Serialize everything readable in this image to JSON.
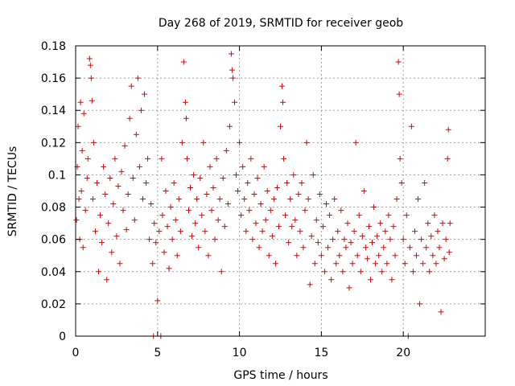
{
  "chart_data": {
    "type": "scatter",
    "title": "Day 268 of 2019, SRMTID for receiver geob",
    "xlabel": "GPS time / hours",
    "ylabel": "SRMTID / TECUs",
    "xlim": [
      0,
      25
    ],
    "ylim": [
      0,
      0.18
    ],
    "xticks": [
      0,
      5,
      10,
      15,
      20
    ],
    "xtick_labels": [
      "0",
      "5",
      "10",
      "15",
      "20"
    ],
    "yticks": [
      0,
      0.02,
      0.04,
      0.06,
      0.08,
      0.1,
      0.12,
      0.14,
      0.16,
      0.18
    ],
    "ytick_labels": [
      "0",
      "0.02",
      "0.04",
      "0.06",
      "0.08",
      "0.1",
      "0.12",
      "0.14",
      "0.16",
      "0.18"
    ],
    "grid": true,
    "marker": "+",
    "color": "#e00000",
    "series": [
      {
        "name": "SRMTID",
        "points": [
          [
            0.05,
            0.072
          ],
          [
            0.1,
            0.105
          ],
          [
            0.15,
            0.13
          ],
          [
            0.2,
            0.085
          ],
          [
            0.25,
            0.06
          ],
          [
            0.3,
            0.145
          ],
          [
            0.35,
            0.09
          ],
          [
            0.4,
            0.115
          ],
          [
            0.45,
            0.055
          ],
          [
            0.5,
            0.138
          ],
          [
            0.6,
            0.078
          ],
          [
            0.7,
            0.098
          ],
          [
            0.75,
            0.11
          ],
          [
            0.85,
            0.172
          ],
          [
            0.9,
            0.168
          ],
          [
            0.95,
            0.16
          ],
          [
            1.0,
            0.146
          ],
          [
            1.05,
            0.085
          ],
          [
            1.1,
            0.12
          ],
          [
            1.2,
            0.065
          ],
          [
            1.3,
            0.095
          ],
          [
            1.4,
            0.04
          ],
          [
            1.5,
            0.075
          ],
          [
            1.6,
            0.058
          ],
          [
            1.7,
            0.105
          ],
          [
            1.8,
            0.088
          ],
          [
            1.9,
            0.035
          ],
          [
            2.0,
            0.07
          ],
          [
            2.1,
            0.098
          ],
          [
            2.2,
            0.052
          ],
          [
            2.3,
            0.082
          ],
          [
            2.4,
            0.11
          ],
          [
            2.5,
            0.062
          ],
          [
            2.6,
            0.093
          ],
          [
            2.7,
            0.045
          ],
          [
            2.8,
            0.102
          ],
          [
            2.9,
            0.078
          ],
          [
            3.0,
            0.118
          ],
          [
            3.1,
            0.066
          ],
          [
            3.2,
            0.088
          ],
          [
            3.3,
            0.135
          ],
          [
            3.4,
            0.155
          ],
          [
            3.5,
            0.098
          ],
          [
            3.6,
            0.072
          ],
          [
            3.7,
            0.125
          ],
          [
            3.8,
            0.16
          ],
          [
            3.9,
            0.105
          ],
          [
            4.0,
            0.14
          ],
          [
            4.1,
            0.085
          ],
          [
            4.2,
            0.15
          ],
          [
            4.3,
            0.095
          ],
          [
            4.4,
            0.11
          ],
          [
            4.5,
            0.06
          ],
          [
            4.6,
            0.082
          ],
          [
            4.7,
            0.045
          ],
          [
            4.75,
            0.0
          ],
          [
            4.8,
            0.07
          ],
          [
            4.9,
            0.058
          ],
          [
            5.0,
            0.022
          ],
          [
            5.1,
            0.065
          ],
          [
            5.2,
            0.0
          ],
          [
            5.25,
            0.11
          ],
          [
            5.3,
            0.075
          ],
          [
            5.4,
            0.052
          ],
          [
            5.5,
            0.09
          ],
          [
            5.6,
            0.068
          ],
          [
            5.7,
            0.042
          ],
          [
            5.8,
            0.08
          ],
          [
            5.9,
            0.06
          ],
          [
            6.0,
            0.095
          ],
          [
            6.1,
            0.072
          ],
          [
            6.2,
            0.05
          ],
          [
            6.3,
            0.085
          ],
          [
            6.4,
            0.065
          ],
          [
            6.5,
            0.12
          ],
          [
            6.6,
            0.17
          ],
          [
            6.7,
            0.145
          ],
          [
            6.75,
            0.135
          ],
          [
            6.8,
            0.11
          ],
          [
            6.9,
            0.078
          ],
          [
            7.0,
            0.092
          ],
          [
            7.1,
            0.062
          ],
          [
            7.2,
            0.1
          ],
          [
            7.3,
            0.07
          ],
          [
            7.4,
            0.085
          ],
          [
            7.5,
            0.055
          ],
          [
            7.6,
            0.098
          ],
          [
            7.7,
            0.075
          ],
          [
            7.8,
            0.12
          ],
          [
            7.9,
            0.065
          ],
          [
            8.0,
            0.088
          ],
          [
            8.1,
            0.05
          ],
          [
            8.2,
            0.105
          ],
          [
            8.3,
            0.078
          ],
          [
            8.4,
            0.092
          ],
          [
            8.5,
            0.06
          ],
          [
            8.6,
            0.11
          ],
          [
            8.7,
            0.072
          ],
          [
            8.8,
            0.085
          ],
          [
            8.9,
            0.04
          ],
          [
            9.0,
            0.098
          ],
          [
            9.1,
            0.068
          ],
          [
            9.2,
            0.115
          ],
          [
            9.3,
            0.082
          ],
          [
            9.4,
            0.13
          ],
          [
            9.5,
            0.175
          ],
          [
            9.55,
            0.165
          ],
          [
            9.6,
            0.16
          ],
          [
            9.7,
            0.145
          ],
          [
            9.8,
            0.1
          ],
          [
            9.9,
            0.09
          ],
          [
            10.0,
            0.12
          ],
          [
            10.1,
            0.075
          ],
          [
            10.2,
            0.105
          ],
          [
            10.3,
            0.085
          ],
          [
            10.4,
            0.065
          ],
          [
            10.5,
            0.095
          ],
          [
            10.6,
            0.078
          ],
          [
            10.7,
            0.11
          ],
          [
            10.8,
            0.06
          ],
          [
            10.9,
            0.088
          ],
          [
            11.0,
            0.07
          ],
          [
            11.1,
            0.098
          ],
          [
            11.2,
            0.055
          ],
          [
            11.3,
            0.082
          ],
          [
            11.4,
            0.065
          ],
          [
            11.5,
            0.105
          ],
          [
            11.6,
            0.072
          ],
          [
            11.7,
            0.09
          ],
          [
            11.8,
            0.05
          ],
          [
            11.9,
            0.078
          ],
          [
            12.0,
            0.062
          ],
          [
            12.1,
            0.085
          ],
          [
            12.2,
            0.045
          ],
          [
            12.3,
            0.092
          ],
          [
            12.4,
            0.068
          ],
          [
            12.5,
            0.13
          ],
          [
            12.6,
            0.155
          ],
          [
            12.65,
            0.145
          ],
          [
            12.7,
            0.11
          ],
          [
            12.8,
            0.075
          ],
          [
            12.9,
            0.095
          ],
          [
            13.0,
            0.058
          ],
          [
            13.1,
            0.085
          ],
          [
            13.2,
            0.068
          ],
          [
            13.3,
            0.1
          ],
          [
            13.4,
            0.072
          ],
          [
            13.5,
            0.05
          ],
          [
            13.6,
            0.088
          ],
          [
            13.7,
            0.065
          ],
          [
            13.8,
            0.095
          ],
          [
            13.9,
            0.055
          ],
          [
            14.0,
            0.078
          ],
          [
            14.1,
            0.12
          ],
          [
            14.2,
            0.085
          ],
          [
            14.3,
            0.032
          ],
          [
            14.4,
            0.062
          ],
          [
            14.5,
            0.1
          ],
          [
            14.6,
            0.045
          ],
          [
            14.7,
            0.072
          ],
          [
            14.8,
            0.058
          ],
          [
            14.9,
            0.088
          ],
          [
            15.0,
            0.05
          ],
          [
            15.1,
            0.068
          ],
          [
            15.2,
            0.04
          ],
          [
            15.3,
            0.082
          ],
          [
            15.4,
            0.055
          ],
          [
            15.5,
            0.075
          ],
          [
            15.6,
            0.035
          ],
          [
            15.7,
            0.06
          ],
          [
            15.8,
            0.085
          ],
          [
            15.9,
            0.045
          ],
          [
            16.0,
            0.065
          ],
          [
            16.1,
            0.05
          ],
          [
            16.2,
            0.078
          ],
          [
            16.3,
            0.04
          ],
          [
            16.4,
            0.06
          ],
          [
            16.5,
            0.055
          ],
          [
            16.6,
            0.07
          ],
          [
            16.7,
            0.03
          ],
          [
            16.8,
            0.058
          ],
          [
            16.9,
            0.045
          ],
          [
            17.0,
            0.065
          ],
          [
            17.1,
            0.12
          ],
          [
            17.2,
            0.05
          ],
          [
            17.3,
            0.075
          ],
          [
            17.4,
            0.04
          ],
          [
            17.5,
            0.062
          ],
          [
            17.6,
            0.09
          ],
          [
            17.7,
            0.055
          ],
          [
            17.8,
            0.048
          ],
          [
            17.9,
            0.068
          ],
          [
            18.0,
            0.035
          ],
          [
            18.1,
            0.058
          ],
          [
            18.2,
            0.08
          ],
          [
            18.3,
            0.045
          ],
          [
            18.4,
            0.062
          ],
          [
            18.5,
            0.05
          ],
          [
            18.6,
            0.07
          ],
          [
            18.7,
            0.04
          ],
          [
            18.8,
            0.055
          ],
          [
            18.9,
            0.065
          ],
          [
            19.0,
            0.045
          ],
          [
            19.1,
            0.075
          ],
          [
            19.2,
            0.06
          ],
          [
            19.3,
            0.035
          ],
          [
            19.4,
            0.068
          ],
          [
            19.5,
            0.05
          ],
          [
            19.6,
            0.085
          ],
          [
            19.7,
            0.17
          ],
          [
            19.75,
            0.15
          ],
          [
            19.8,
            0.11
          ],
          [
            19.9,
            0.095
          ],
          [
            20.0,
            0.06
          ],
          [
            20.1,
            0.045
          ],
          [
            20.2,
            0.075
          ],
          [
            20.3,
            0.0
          ],
          [
            20.4,
            0.055
          ],
          [
            20.5,
            0.13
          ],
          [
            20.6,
            0.04
          ],
          [
            20.7,
            0.065
          ],
          [
            20.8,
            0.05
          ],
          [
            20.9,
            0.085
          ],
          [
            21.0,
            0.02
          ],
          [
            21.1,
            0.06
          ],
          [
            21.2,
            0.045
          ],
          [
            21.3,
            0.095
          ],
          [
            21.4,
            0.055
          ],
          [
            21.5,
            0.07
          ],
          [
            21.6,
            0.04
          ],
          [
            21.7,
            0.062
          ],
          [
            21.8,
            0.05
          ],
          [
            21.9,
            0.075
          ],
          [
            22.0,
            0.045
          ],
          [
            22.1,
            0.065
          ],
          [
            22.2,
            0.055
          ],
          [
            22.3,
            0.015
          ],
          [
            22.4,
            0.07
          ],
          [
            22.5,
            0.048
          ],
          [
            22.6,
            0.06
          ],
          [
            22.7,
            0.11
          ],
          [
            22.75,
            0.128
          ],
          [
            22.8,
            0.052
          ],
          [
            22.85,
            0.07
          ]
        ]
      }
    ]
  }
}
